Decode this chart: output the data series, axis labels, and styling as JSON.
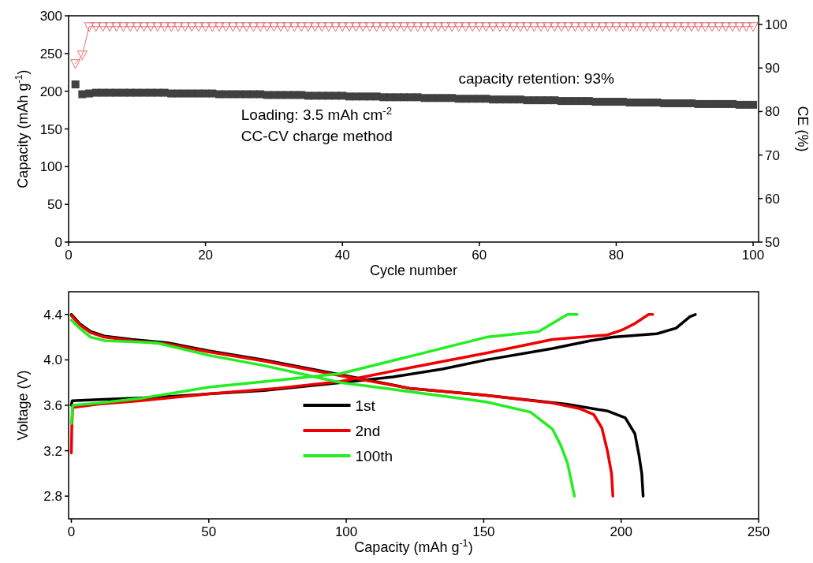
{
  "chart_data": [
    {
      "type": "scatter",
      "xlabel": "Cycle number",
      "ylabel": "Capacity (mAh g$^{-1}$)",
      "y2label": "CE (%)",
      "xlim": [
        0,
        100.8
      ],
      "xticks": [
        0,
        20,
        40,
        60,
        80,
        100
      ],
      "ylim": [
        0,
        300
      ],
      "yticks": [
        0,
        50,
        100,
        150,
        200,
        250,
        300
      ],
      "y2lim": [
        50,
        102
      ],
      "y2ticks": [
        50,
        60,
        70,
        80,
        90,
        100
      ],
      "annotations": [
        "capacity retention: 93%",
        "Loading: 3.5 mAh cm$^{-2}$",
        "CC-CV charge method"
      ],
      "x": [
        1,
        2,
        3,
        4,
        5,
        6,
        7,
        8,
        9,
        10,
        11,
        12,
        13,
        14,
        15,
        16,
        17,
        18,
        19,
        20,
        21,
        22,
        23,
        24,
        25,
        26,
        27,
        28,
        29,
        30,
        31,
        32,
        33,
        34,
        35,
        36,
        37,
        38,
        39,
        40,
        41,
        42,
        43,
        44,
        45,
        46,
        47,
        48,
        49,
        50,
        51,
        52,
        53,
        54,
        55,
        56,
        57,
        58,
        59,
        60,
        61,
        62,
        63,
        64,
        65,
        66,
        67,
        68,
        69,
        70,
        71,
        72,
        73,
        74,
        75,
        76,
        77,
        78,
        79,
        80,
        81,
        82,
        83,
        84,
        85,
        86,
        87,
        88,
        89,
        90,
        91,
        92,
        93,
        94,
        95,
        96,
        97,
        98,
        99,
        100
      ],
      "series": [
        {
          "type": "scatter",
          "marker": "square",
          "color": "#404040",
          "values": [
            209,
            196,
            197,
            198,
            198,
            198,
            198,
            198,
            198,
            198,
            198,
            198,
            198,
            198,
            197,
            197,
            197,
            197,
            197,
            197,
            197,
            196,
            196,
            196,
            196,
            196,
            196,
            196,
            195,
            195,
            195,
            195,
            195,
            195,
            194,
            194,
            194,
            194,
            194,
            194,
            193,
            193,
            193,
            193,
            193,
            192,
            192,
            192,
            192,
            192,
            192,
            191,
            191,
            191,
            191,
            191,
            190,
            190,
            190,
            190,
            190,
            189,
            189,
            189,
            189,
            189,
            188,
            188,
            188,
            188,
            188,
            187,
            187,
            187,
            187,
            187,
            186,
            186,
            186,
            186,
            186,
            185,
            185,
            185,
            185,
            185,
            184,
            184,
            184,
            184,
            184,
            183,
            183,
            183,
            183,
            183,
            183,
            182,
            182,
            182
          ]
        },
        {
          "type": "line",
          "axis": "y2",
          "marker": "triangle",
          "color": "#e07070",
          "values": [
            91,
            93,
            99.5,
            99.5,
            99.5,
            99.5,
            99.5,
            99.5,
            99.5,
            99.5,
            99.5,
            99.5,
            99.5,
            99.5,
            99.5,
            99.5,
            99.5,
            99.5,
            99.5,
            99.5,
            99.5,
            99.5,
            99.5,
            99.5,
            99.5,
            99.5,
            99.5,
            99.5,
            99.5,
            99.5,
            99.5,
            99.5,
            99.5,
            99.5,
            99.5,
            99.5,
            99.5,
            99.5,
            99.5,
            99.5,
            99.5,
            99.5,
            99.5,
            99.5,
            99.5,
            99.5,
            99.5,
            99.5,
            99.5,
            99.5,
            99.5,
            99.5,
            99.5,
            99.5,
            99.5,
            99.5,
            99.5,
            99.5,
            99.5,
            99.5,
            99.5,
            99.5,
            99.5,
            99.5,
            99.5,
            99.5,
            99.5,
            99.5,
            99.5,
            99.5,
            99.5,
            99.5,
            99.5,
            99.5,
            99.5,
            99.5,
            99.5,
            99.5,
            99.5,
            99.5,
            99.5,
            99.5,
            99.5,
            99.5,
            99.5,
            99.5,
            99.5,
            99.5,
            99.5,
            99.5,
            99.5,
            99.5,
            99.5,
            99.5,
            99.5,
            99.5,
            99.5,
            99.5,
            99.5,
            99.5
          ]
        }
      ]
    },
    {
      "type": "line",
      "xlabel": "Capacity (mAh g$^{-1}$)",
      "ylabel": "Voltage (V)",
      "xlim": [
        -1,
        250
      ],
      "xticks": [
        0,
        50,
        100,
        150,
        200,
        250
      ],
      "ylim": [
        2.6,
        4.6
      ],
      "yticks": [
        2.8,
        3.2,
        3.6,
        {
          "value": 4,
          "label": "4.0"
        },
        4.4
      ],
      "legend": "center",
      "series": [
        {
          "name": "1st",
          "color": "#000000",
          "x": [
            0,
            0.3,
            10,
            30,
            50,
            70,
            98,
            117,
            135,
            151,
            175,
            189,
            197,
            213,
            220,
            225,
            227
          ],
          "values": [
            3.6,
            3.64,
            3.65,
            3.67,
            3.7,
            3.73,
            3.8,
            3.85,
            3.92,
            4.0,
            4.1,
            4.17,
            4.2,
            4.23,
            4.28,
            4.38,
            4.4
          ]
        },
        {
          "color": "#000000",
          "x": [
            0,
            3,
            7,
            12,
            22,
            35,
            50,
            70,
            98,
            123,
            150,
            180,
            195,
            201.5,
            205,
            206.5,
            207.5,
            208
          ],
          "values": [
            4.4,
            4.32,
            4.25,
            4.21,
            4.18,
            4.15,
            4.08,
            4.0,
            3.87,
            3.75,
            3.69,
            3.61,
            3.55,
            3.49,
            3.35,
            3.16,
            3.0,
            2.8
          ]
        },
        {
          "name": "2nd",
          "color": "#ee0000",
          "x": [
            0,
            0.2,
            0.5,
            10,
            25,
            50,
            75,
            98,
            123,
            151,
            175,
            195,
            200,
            205,
            210,
            211.5
          ],
          "values": [
            3.18,
            3.44,
            3.58,
            3.61,
            3.64,
            3.7,
            3.75,
            3.81,
            3.93,
            4.06,
            4.18,
            4.22,
            4.26,
            4.32,
            4.4,
            4.4
          ]
        },
        {
          "color": "#ee0000",
          "x": [
            0,
            3,
            7,
            12,
            22,
            35,
            50,
            70,
            98,
            123,
            150,
            175,
            185,
            190,
            193,
            195,
            196.5,
            197
          ],
          "values": [
            4.39,
            4.31,
            4.24,
            4.2,
            4.17,
            4.14,
            4.07,
            3.99,
            3.86,
            3.75,
            3.69,
            3.62,
            3.57,
            3.52,
            3.4,
            3.2,
            3.0,
            2.8
          ]
        },
        {
          "name": "100th",
          "color": "#22ee22",
          "x": [
            0,
            0.5,
            10,
            25,
            50,
            75,
            98,
            123,
            151,
            170,
            177,
            180.5,
            184
          ],
          "values": [
            3.44,
            3.6,
            3.62,
            3.66,
            3.76,
            3.82,
            3.88,
            4.03,
            4.2,
            4.25,
            4.35,
            4.4,
            4.4
          ]
        },
        {
          "color": "#22ee22",
          "x": [
            0,
            3,
            7,
            12,
            31,
            50,
            70,
            98,
            117,
            151,
            167,
            175,
            178,
            180.5,
            183
          ],
          "values": [
            4.35,
            4.28,
            4.2,
            4.17,
            4.15,
            4.04,
            3.95,
            3.8,
            3.74,
            3.63,
            3.54,
            3.39,
            3.25,
            3.09,
            2.8
          ]
        }
      ]
    }
  ]
}
